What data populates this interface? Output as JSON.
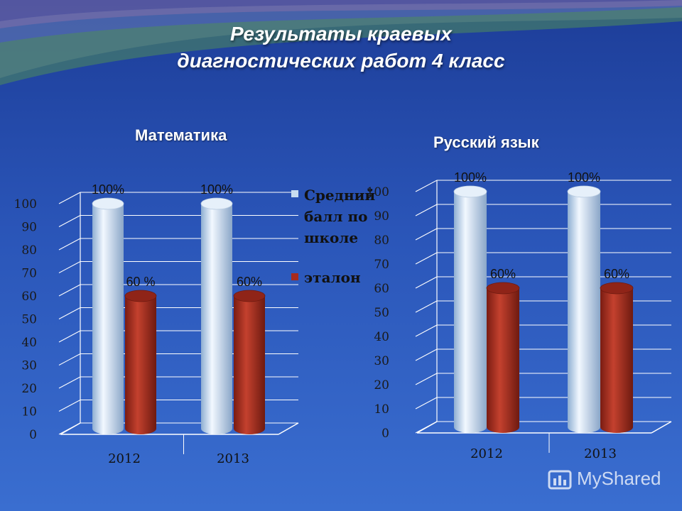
{
  "title_line1": "Результаты краевых",
  "title_line2": "диагностических работ 4 класс",
  "watermark_text": "MyShared",
  "colors": {
    "avg": "#c7dcf0",
    "etalon": "#a82a1c",
    "grid": "#ffffff",
    "tick": "#1a1a1a"
  },
  "chart_data": [
    {
      "type": "bar",
      "title": "Математика",
      "categories": [
        "2012",
        "2013"
      ],
      "ylim": [
        0,
        100
      ],
      "yticks": [
        "0",
        "10",
        "20",
        "30",
        "40",
        "50",
        "60",
        "70",
        "80",
        "90",
        "100"
      ],
      "grid": true,
      "legend_position": "right",
      "series": [
        {
          "name": "Средний балл по школе",
          "values": [
            100,
            100
          ],
          "labels": [
            "100%",
            "100%"
          ]
        },
        {
          "name": "эталон",
          "values": [
            60,
            60
          ],
          "labels": [
            "60 %",
            "60%"
          ]
        }
      ]
    },
    {
      "type": "bar",
      "title": "Русский язык",
      "categories": [
        "2012",
        "2013"
      ],
      "ylim": [
        0,
        100
      ],
      "yticks": [
        "0",
        "10",
        "20",
        "30",
        "40",
        "50",
        "60",
        "70",
        "80",
        "90",
        "100"
      ],
      "grid": true,
      "legend_position": "none",
      "series": [
        {
          "name": "",
          "values": [
            100,
            100
          ],
          "labels": [
            "100%",
            "100%"
          ]
        },
        {
          "name": "",
          "values": [
            60,
            60
          ],
          "labels": [
            "60%",
            "60%"
          ]
        }
      ]
    }
  ]
}
